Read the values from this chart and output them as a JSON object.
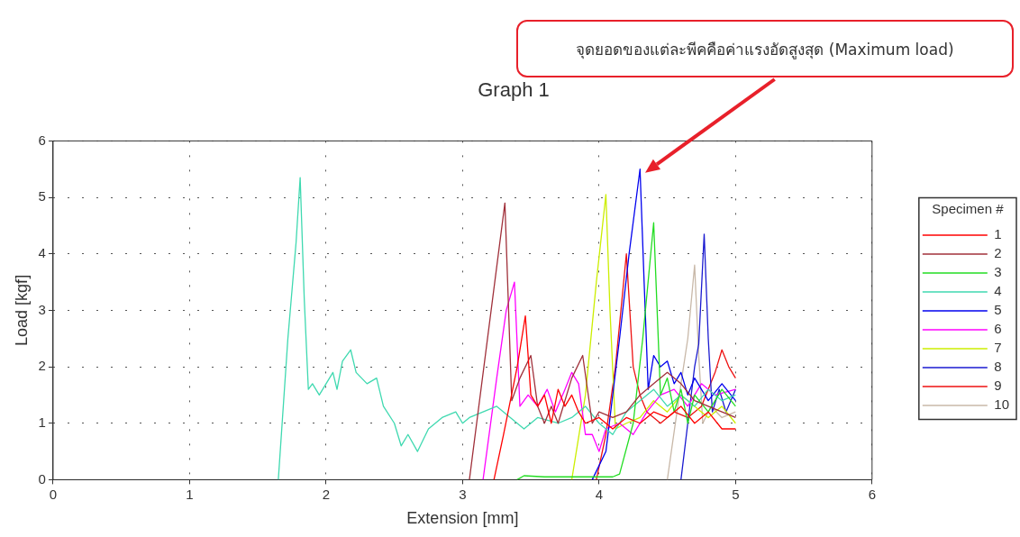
{
  "chart_data": {
    "type": "line",
    "title": "Graph 1",
    "xlabel": "Extension [mm]",
    "ylabel": "Load [kgf]",
    "legend_title": "Specimen #",
    "legend": "right",
    "grid": true,
    "marker": "none",
    "xlim": [
      0,
      6
    ],
    "xticks": [
      0,
      1,
      2,
      3,
      4,
      5,
      6
    ],
    "ylim": [
      0,
      6
    ],
    "yticks": [
      0,
      1,
      2,
      3,
      4,
      5,
      6
    ],
    "annotations": [
      "จุดยอดของแต่ละพีคคือค่าแรงอัดสูงสุด (Maximum load)"
    ],
    "series": [
      {
        "name": "1",
        "color": "#ff0000",
        "x": [
          3.23,
          3.3,
          3.4,
          3.46,
          3.5,
          3.55,
          3.6,
          3.65,
          3.7,
          3.75,
          3.8,
          3.85,
          3.9,
          4.0,
          4.1,
          4.2,
          4.3,
          4.4,
          4.5,
          4.6,
          4.7,
          4.8,
          4.9,
          5.0
        ],
        "values": [
          0,
          0.8,
          2.0,
          2.9,
          1.5,
          1.3,
          1.5,
          1.0,
          1.6,
          1.3,
          1.5,
          1.2,
          1.0,
          1.1,
          0.9,
          1.1,
          1.0,
          1.2,
          1.1,
          1.3,
          1.0,
          1.2,
          0.9,
          0.9
        ]
      },
      {
        "name": "2",
        "color": "#a0303a",
        "x": [
          3.05,
          3.31,
          3.36,
          3.42,
          3.5,
          3.55,
          3.6,
          3.65,
          3.7,
          3.8,
          3.88,
          3.95,
          4.0,
          4.1,
          4.2,
          4.3,
          4.4,
          4.5,
          4.6,
          4.7,
          4.8,
          4.9,
          5.0
        ],
        "values": [
          0,
          4.9,
          1.4,
          1.8,
          2.2,
          1.3,
          1.0,
          1.3,
          1.0,
          1.8,
          2.2,
          1.0,
          1.2,
          1.1,
          1.2,
          1.5,
          1.7,
          1.9,
          1.7,
          1.4,
          1.3,
          1.2,
          1.1
        ]
      },
      {
        "name": "3",
        "color": "#22dd22",
        "x": [
          3.4,
          3.45,
          3.6,
          4.1,
          4.15,
          4.25,
          4.32,
          4.4,
          4.45,
          4.5,
          4.55,
          4.6,
          4.65,
          4.7,
          4.8,
          4.9,
          5.0
        ],
        "values": [
          0,
          0.07,
          0.05,
          0.05,
          0.1,
          1.0,
          2.5,
          4.55,
          1.5,
          1.8,
          1.2,
          1.6,
          1.0,
          1.5,
          1.2,
          1.6,
          1.3
        ]
      },
      {
        "name": "4",
        "color": "#3fd9b0",
        "x": [
          1.65,
          1.72,
          1.78,
          1.81,
          1.84,
          1.87,
          1.9,
          1.95,
          2.0,
          2.05,
          2.08,
          2.12,
          2.18,
          2.22,
          2.3,
          2.37,
          2.42,
          2.5,
          2.55,
          2.6,
          2.67,
          2.75,
          2.85,
          2.95,
          3.0,
          3.05,
          3.15,
          3.25,
          3.35,
          3.45,
          3.55,
          3.7,
          3.8,
          3.9,
          4.0,
          4.1,
          4.2,
          4.3,
          4.4,
          4.5,
          4.6,
          4.7,
          4.8,
          4.9,
          5.0
        ],
        "values": [
          0,
          2.5,
          4.2,
          5.35,
          3.2,
          1.6,
          1.7,
          1.5,
          1.7,
          1.9,
          1.6,
          2.1,
          2.3,
          1.9,
          1.7,
          1.8,
          1.3,
          1.0,
          0.6,
          0.8,
          0.5,
          0.9,
          1.1,
          1.2,
          1.0,
          1.1,
          1.2,
          1.3,
          1.1,
          0.9,
          1.1,
          1.0,
          1.1,
          1.3,
          1.0,
          0.8,
          1.2,
          1.4,
          1.6,
          1.3,
          1.5,
          1.3,
          1.6,
          1.4,
          1.5
        ]
      },
      {
        "name": "5",
        "color": "#0000ee",
        "x": [
          3.95,
          4.05,
          4.15,
          4.22,
          4.3,
          4.33,
          4.36,
          4.4,
          4.45,
          4.5,
          4.55,
          4.6,
          4.65,
          4.7,
          4.8,
          4.9,
          5.0
        ],
        "values": [
          0,
          0.5,
          2.5,
          4.0,
          5.5,
          3.5,
          1.6,
          2.2,
          2.0,
          2.1,
          1.7,
          1.9,
          1.5,
          1.8,
          1.4,
          1.7,
          1.4
        ]
      },
      {
        "name": "6",
        "color": "#ff00ff",
        "x": [
          3.15,
          3.25,
          3.32,
          3.38,
          3.42,
          3.48,
          3.55,
          3.62,
          3.68,
          3.75,
          3.8,
          3.85,
          3.9,
          3.95,
          4.0,
          4.05,
          4.15,
          4.25,
          4.35,
          4.45,
          4.55,
          4.65,
          4.75,
          4.85,
          5.0
        ],
        "values": [
          0,
          1.8,
          3.0,
          3.5,
          1.3,
          1.5,
          1.3,
          1.6,
          1.2,
          1.6,
          1.9,
          1.7,
          0.8,
          0.8,
          0.5,
          0.9,
          1.0,
          0.8,
          1.2,
          1.5,
          1.6,
          1.3,
          1.7,
          1.5,
          1.6
        ]
      },
      {
        "name": "7",
        "color": "#ccee00",
        "x": [
          3.8,
          3.9,
          3.98,
          4.05,
          4.08,
          4.12,
          4.2,
          4.3,
          4.4,
          4.5,
          4.6,
          4.7,
          4.8,
          4.9,
          5.0
        ],
        "values": [
          0,
          1.5,
          3.5,
          5.05,
          3.0,
          0.9,
          1.0,
          1.1,
          1.4,
          1.2,
          1.5,
          1.3,
          1.1,
          1.3,
          1.0
        ]
      },
      {
        "name": "8",
        "color": "#1a1ad0",
        "x": [
          4.6,
          4.65,
          4.7,
          4.73,
          4.77,
          4.8,
          4.83,
          4.88,
          4.93,
          5.0
        ],
        "values": [
          0,
          1.0,
          2.0,
          2.4,
          4.35,
          2.5,
          1.2,
          1.6,
          1.2,
          1.6
        ]
      },
      {
        "name": "9",
        "color": "#ee1111",
        "x": [
          3.98,
          4.05,
          4.12,
          4.2,
          4.25,
          4.3,
          4.35,
          4.45,
          4.55,
          4.65,
          4.75,
          4.85,
          4.9,
          4.95,
          5.0
        ],
        "values": [
          0,
          0.8,
          2.0,
          4.0,
          2.0,
          1.5,
          1.2,
          1.0,
          1.2,
          1.1,
          1.3,
          1.9,
          2.3,
          2.0,
          1.8
        ]
      },
      {
        "name": "10",
        "color": "#c8b8a8",
        "x": [
          4.5,
          4.6,
          4.65,
          4.7,
          4.73,
          4.76,
          4.82,
          4.9,
          5.0
        ],
        "values": [
          0,
          1.7,
          2.5,
          3.8,
          2.2,
          1.0,
          1.3,
          1.1,
          1.2
        ]
      }
    ]
  }
}
